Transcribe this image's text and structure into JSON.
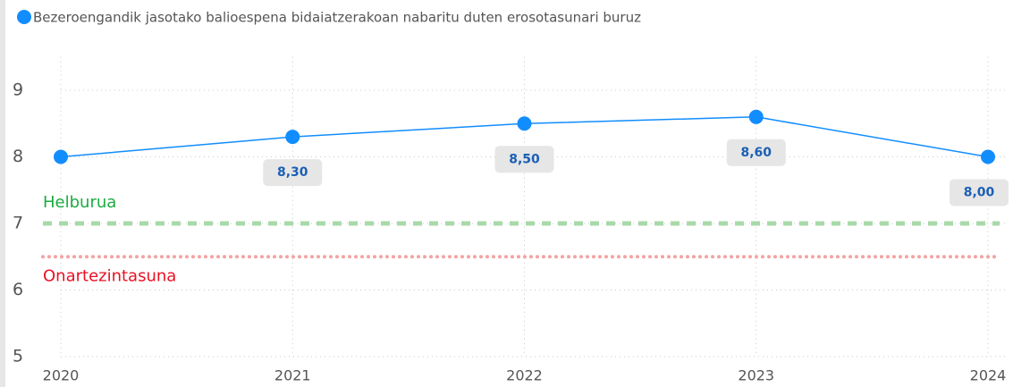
{
  "chart_data": {
    "type": "line",
    "categories": [
      "2020",
      "2021",
      "2022",
      "2023",
      "2024"
    ],
    "series": [
      {
        "name": "Bezeroengandik jasotako balioespena bidaiatzerakoan nabaritu duten erosotasunari buruz",
        "color": "#118DFF",
        "values": [
          8.0,
          8.3,
          8.5,
          8.6,
          8.0
        ],
        "value_labels": [
          null,
          "8,30",
          "8,50",
          "8,60",
          "8,00"
        ]
      }
    ],
    "ylim": [
      5,
      9.5
    ],
    "yticks": [
      5,
      6,
      7,
      8,
      9
    ],
    "grid": true,
    "reference_lines": [
      {
        "label": "Helburua",
        "value": 7,
        "color": "#a9d9a9",
        "label_color": "#1aab40",
        "style": "dashed",
        "label_position": "above"
      },
      {
        "label": "Onartezintasuna",
        "value": 6.5,
        "color": "#f4a3a3",
        "label_color": "#e81123",
        "style": "dotted",
        "label_position": "below"
      }
    ]
  }
}
